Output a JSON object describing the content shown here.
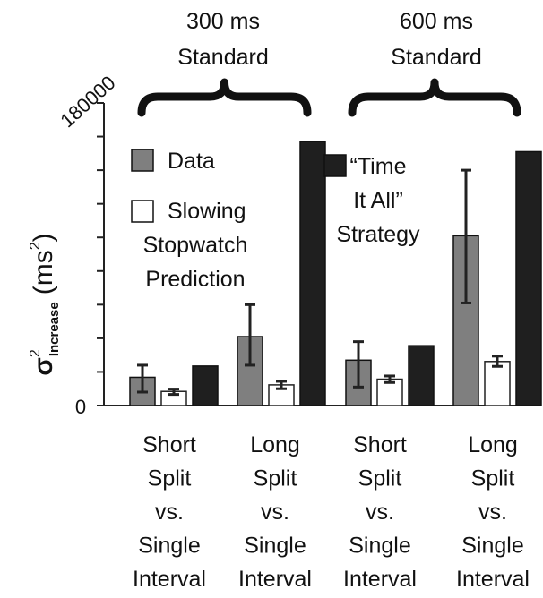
{
  "chart_data": {
    "type": "bar",
    "title": "",
    "ylabel": {
      "symbol": "σ",
      "superscript": "2",
      "subscript": "Increase",
      "unit": "(ms",
      "unit_sup": "2",
      "unit_close": ")"
    },
    "ylim": [
      0,
      180000
    ],
    "y_tick_labels": [
      "0",
      "180000"
    ],
    "group_headers": [
      {
        "lines": [
          "300 ms",
          "Standard"
        ]
      },
      {
        "lines": [
          "600 ms",
          "Standard"
        ]
      }
    ],
    "categories": [
      [
        "Short",
        "Split",
        "vs.",
        "Single",
        "Interval"
      ],
      [
        "Long",
        "Split",
        "vs.",
        "Single",
        "Interval"
      ],
      [
        "Short",
        "Split",
        "vs.",
        "Single",
        "Interval"
      ],
      [
        "Long",
        "Split",
        "vs.",
        "Single",
        "Interval"
      ]
    ],
    "series": [
      {
        "name": "Data",
        "color": "#7f7f7f",
        "values": [
          16800,
          41000,
          27000,
          101000
        ],
        "err_low": [
          8000,
          24000,
          11000,
          61000
        ],
        "err_high": [
          24000,
          60000,
          38000,
          140000
        ]
      },
      {
        "name": "Slowing Stopwatch Prediction",
        "color": "#ffffff",
        "values": [
          8400,
          12300,
          15700,
          26200
        ],
        "err_low": [
          6600,
          10000,
          13700,
          23300
        ],
        "err_high": [
          9800,
          14400,
          17600,
          29400
        ]
      },
      {
        "name": "“Time It All” Strategy",
        "color": "#1f1f1f",
        "values": [
          23500,
          157000,
          35600,
          151000
        ]
      }
    ],
    "legend": [
      {
        "lines": [
          "Data"
        ],
        "color": "#7f7f7f"
      },
      {
        "lines": [
          "Slowing",
          "Stopwatch",
          "Prediction"
        ],
        "color": "#ffffff"
      },
      {
        "lines": [
          "“Time",
          "It All”",
          "Strategy"
        ],
        "color": "#1f1f1f"
      }
    ],
    "grid": false
  }
}
